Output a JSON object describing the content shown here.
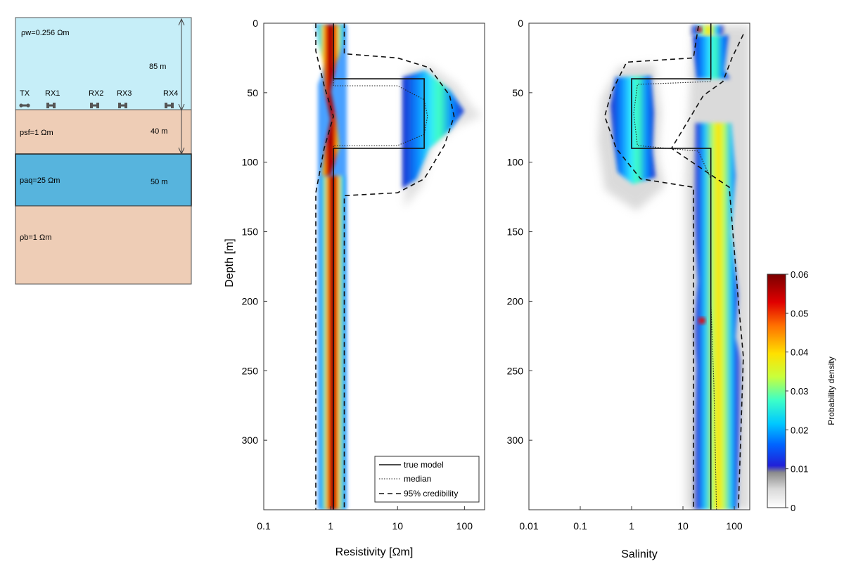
{
  "schematic": {
    "layers": [
      {
        "label": "ρw=0.256 Ωm",
        "thickness": "85 m",
        "color": "#c6eef8"
      },
      {
        "label": "psf=1 Ωm",
        "thickness": "40 m",
        "color": "#eecdb6"
      },
      {
        "label": "paq=25 Ωm",
        "thickness": "50 m",
        "color": "#57b4dd"
      },
      {
        "label": "ρb=1 Ωm",
        "thickness": "",
        "color": "#eecdb6"
      }
    ],
    "receivers": [
      "TX",
      "RX1",
      "RX2",
      "RX3",
      "RX4"
    ]
  },
  "chart_data": [
    {
      "type": "heatmap",
      "xlabel": "Resistivity [Ωm]",
      "ylabel": "Depth [m]",
      "xscale": "log",
      "xlim": [
        0.1,
        200
      ],
      "ylim": [
        350,
        0
      ],
      "xticks": [
        {
          "v": 0.1,
          "label": "0.1"
        },
        {
          "v": 1,
          "label": "1"
        },
        {
          "v": 10,
          "label": "10"
        },
        {
          "v": 100,
          "label": "100"
        }
      ],
      "yticks": [
        0,
        50,
        100,
        150,
        200,
        250,
        300
      ],
      "true_model": [
        {
          "x": 1.1,
          "y": 0
        },
        {
          "x": 1.1,
          "y": 40
        },
        {
          "x": 25,
          "y": 40
        },
        {
          "x": 25,
          "y": 90
        },
        {
          "x": 1.1,
          "y": 90
        },
        {
          "x": 1.1,
          "y": 350
        }
      ],
      "median": [
        {
          "x": 1.1,
          "y": 0
        },
        {
          "x": 1.1,
          "y": 45
        },
        {
          "x": 10,
          "y": 45
        },
        {
          "x": 25,
          "y": 55
        },
        {
          "x": 28,
          "y": 67
        },
        {
          "x": 25,
          "y": 80
        },
        {
          "x": 10,
          "y": 88
        },
        {
          "x": 1.1,
          "y": 88
        },
        {
          "x": 1.1,
          "y": 350
        }
      ],
      "credibility_95": [
        [
          {
            "x": 0.6,
            "y": 0
          },
          {
            "x": 0.6,
            "y": 20
          },
          {
            "x": 0.8,
            "y": 45
          },
          {
            "x": 1.1,
            "y": 67
          },
          {
            "x": 0.8,
            "y": 90
          },
          {
            "x": 0.6,
            "y": 122
          },
          {
            "x": 0.6,
            "y": 350
          }
        ],
        [
          {
            "x": 1.6,
            "y": 0
          },
          {
            "x": 1.6,
            "y": 22
          },
          {
            "x": 10,
            "y": 25
          },
          {
            "x": 30,
            "y": 32
          },
          {
            "x": 60,
            "y": 52
          },
          {
            "x": 70,
            "y": 67
          },
          {
            "x": 50,
            "y": 88
          },
          {
            "x": 25,
            "y": 112
          },
          {
            "x": 10,
            "y": 122
          },
          {
            "x": 1.6,
            "y": 124
          },
          {
            "x": 1.6,
            "y": 350
          }
        ]
      ],
      "legend": [
        "true model",
        "median",
        "95% credibility"
      ]
    },
    {
      "type": "heatmap",
      "xlabel": "Salinity",
      "xscale": "log",
      "xlim": [
        0.01,
        200
      ],
      "ylim": [
        350,
        0
      ],
      "xticks": [
        {
          "v": 0.01,
          "label": "0.01"
        },
        {
          "v": 0.1,
          "label": "0.1"
        },
        {
          "v": 1,
          "label": "1"
        },
        {
          "v": 10,
          "label": "10"
        },
        {
          "v": 100,
          "label": "100"
        }
      ],
      "yticks": [
        0,
        50,
        100,
        150,
        200,
        250,
        300
      ],
      "true_model": [
        {
          "x": 35,
          "y": 0
        },
        {
          "x": 35,
          "y": 40
        },
        {
          "x": 1,
          "y": 40
        },
        {
          "x": 1,
          "y": 90
        },
        {
          "x": 35,
          "y": 90
        },
        {
          "x": 35,
          "y": 350
        }
      ],
      "median": [
        {
          "x": 35,
          "y": 5
        },
        {
          "x": 35,
          "y": 42
        },
        {
          "x": 1.3,
          "y": 44
        },
        {
          "x": 1.1,
          "y": 65
        },
        {
          "x": 1.3,
          "y": 88
        },
        {
          "x": 20,
          "y": 92
        },
        {
          "x": 35,
          "y": 112
        },
        {
          "x": 35,
          "y": 200
        },
        {
          "x": 40,
          "y": 260
        },
        {
          "x": 45,
          "y": 350
        }
      ],
      "credibility_95": [
        [
          {
            "x": 20,
            "y": 2
          },
          {
            "x": 16,
            "y": 25
          },
          {
            "x": 0.8,
            "y": 28
          },
          {
            "x": 0.4,
            "y": 50
          },
          {
            "x": 0.3,
            "y": 67
          },
          {
            "x": 0.5,
            "y": 90
          },
          {
            "x": 1.5,
            "y": 112
          },
          {
            "x": 16,
            "y": 118
          },
          {
            "x": 16,
            "y": 350
          }
        ],
        [
          {
            "x": 150,
            "y": 8
          },
          {
            "x": 90,
            "y": 25
          },
          {
            "x": 60,
            "y": 42
          },
          {
            "x": 25,
            "y": 52
          },
          {
            "x": 6,
            "y": 90
          },
          {
            "x": 80,
            "y": 118
          },
          {
            "x": 120,
            "y": 200
          },
          {
            "x": 150,
            "y": 240
          },
          {
            "x": 120,
            "y": 350
          }
        ]
      ]
    }
  ],
  "colorbar": {
    "label": "Probability density",
    "ticks": [
      "0",
      "0.01",
      "0.02",
      "0.03",
      "0.04",
      "0.05",
      "0.06"
    ],
    "range": [
      0,
      0.06
    ]
  }
}
